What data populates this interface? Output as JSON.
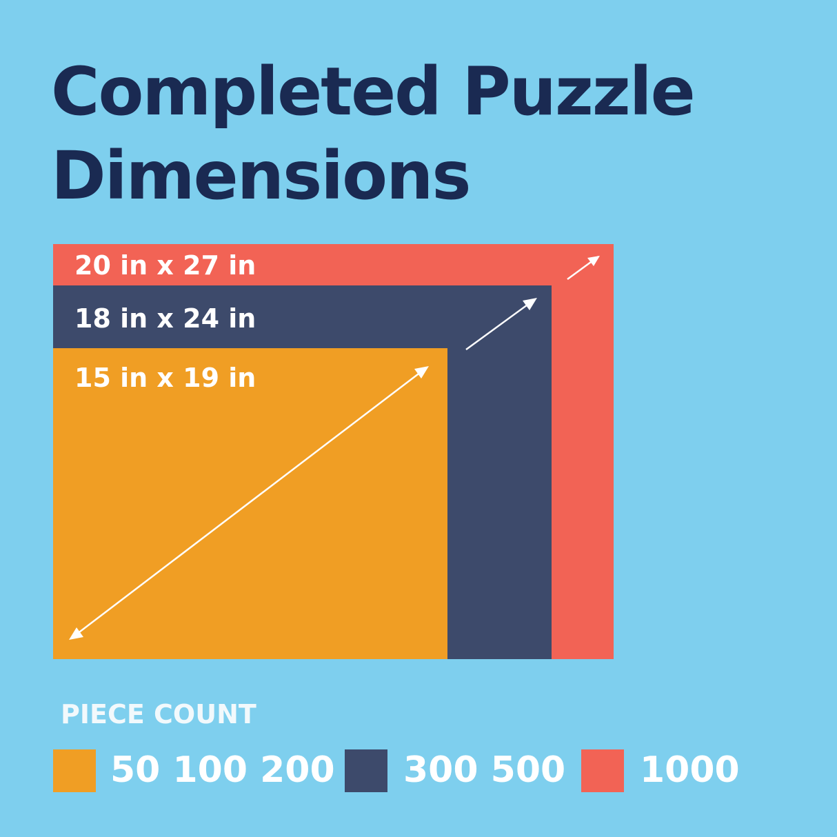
{
  "title_lines": [
    "Completed Puzzle",
    "Dimensions"
  ],
  "sizes": [
    {
      "label": "20 in x 27 in",
      "color": "#f26355"
    },
    {
      "label": "18 in x 24 in",
      "color": "#3d4a6b"
    },
    {
      "label": "15 in x 19 in",
      "color": "#f09e24"
    }
  ],
  "legend": {
    "title": "PIECE COUNT",
    "items": [
      {
        "label": "50 100 200",
        "color": "#f09e24"
      },
      {
        "label": "300 500",
        "color": "#3d4a6b"
      },
      {
        "label": "1000",
        "color": "#f26355"
      }
    ]
  },
  "colors": {
    "background": "#7ecfee",
    "title": "#1a2a52"
  }
}
